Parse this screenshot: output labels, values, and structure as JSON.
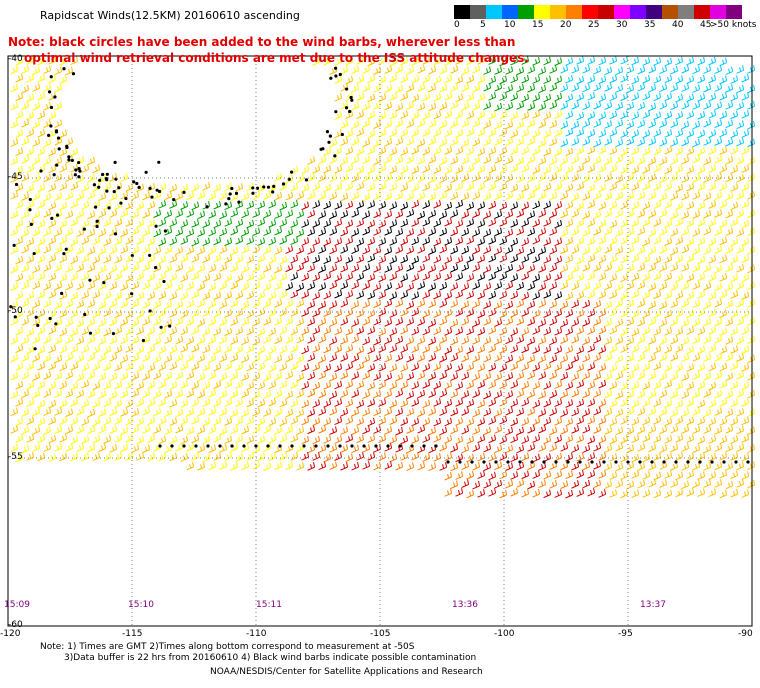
{
  "title": "Rapidscat Winds(12.5KM) 20160610 ascending",
  "note_lines": [
    "Note: black circles have been added to the wind barbs, wherever less than",
    "optimal wind retrieval conditions are met due to the ISS attitude changes."
  ],
  "legend": {
    "labels": [
      "0",
      "5",
      "10",
      "15",
      "20",
      "25",
      "30",
      "35",
      "40",
      "45",
      ">50 knots"
    ],
    "colors": [
      "#000000",
      "#606060",
      "#00c8ff",
      "#0064ff",
      "#00a000",
      "#ffff00",
      "#ffc000",
      "#ff7f00",
      "#ff0000",
      "#c80000",
      "#ff00ff",
      "#8000ff",
      "#400080",
      "#b45000",
      "#7f7f7f",
      "#d00000",
      "#e000e0",
      "#800080"
    ]
  },
  "lat_labels": [
    "-40",
    "-45",
    "-50",
    "-55",
    "-60"
  ],
  "lon_labels": [
    "-120",
    "-115",
    "-110",
    "-105",
    "-100",
    "-95",
    "-90"
  ],
  "time_labels": [
    "15:09",
    "15:10",
    "15:11",
    "13:36",
    "13:37"
  ],
  "footer": {
    "line1": "Note: 1) Times are GMT 2)Times along bottom correspond to measurement at -50S",
    "line2": "3)Data buffer is 22 hrs from 20160610 4) Black wind barbs indicate possible contamination",
    "credit": "NOAA/NESDIS/Center for Satellite Applications and Research"
  }
}
